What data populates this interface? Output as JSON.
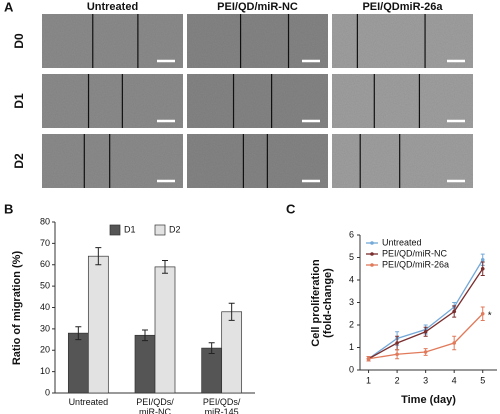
{
  "panel_a": {
    "label": "A",
    "columns": [
      "Untreated",
      "PEI/QD/miR-NC",
      "PEI/QDmiR-26a"
    ],
    "rows": [
      "D0",
      "D1",
      "D2"
    ]
  },
  "panel_b": {
    "label": "B"
  },
  "panel_c": {
    "label": "C"
  },
  "chart_data": [
    {
      "type": "bar",
      "ylabel": "Ratio of migration (%)",
      "categories": [
        "Untreated",
        "PEI/QDs/\nmiR-NC",
        "PEI/QDs/\nmiR-145"
      ],
      "series": [
        {
          "name": "D1",
          "color": "#555555",
          "values": [
            28,
            27,
            21
          ],
          "errors": [
            3,
            2.5,
            2.5
          ]
        },
        {
          "name": "D2",
          "color": "#e2e2e2",
          "values": [
            64,
            59,
            38
          ],
          "errors": [
            4,
            3,
            4
          ]
        }
      ],
      "ylim": [
        0,
        80
      ],
      "yticks": [
        0,
        10,
        20,
        30,
        40,
        50,
        60,
        70,
        80
      ],
      "legend": "top"
    },
    {
      "type": "line",
      "xlabel": "Time (day)",
      "ylabel": "Cell proliferation\n(fold-change)",
      "x": [
        1,
        2,
        3,
        4,
        5
      ],
      "series": [
        {
          "name": "Untreated",
          "color": "#74a9d8",
          "values": [
            0.5,
            1.4,
            1.8,
            2.8,
            4.9
          ],
          "errors": [
            0.1,
            0.3,
            0.2,
            0.2,
            0.25
          ]
        },
        {
          "name": "PEI/QD/miR-NC",
          "color": "#7a2e2e",
          "values": [
            0.5,
            1.2,
            1.7,
            2.6,
            4.5
          ],
          "errors": [
            0.1,
            0.3,
            0.2,
            0.25,
            0.3
          ]
        },
        {
          "name": "PEI/QD/miR-26a",
          "color": "#e07a5a",
          "values": [
            0.5,
            0.7,
            0.8,
            1.2,
            2.5
          ],
          "errors": [
            0.1,
            0.2,
            0.15,
            0.3,
            0.3
          ]
        }
      ],
      "annotation": "*",
      "xlim": [
        0.7,
        5.5
      ],
      "xticks": [
        1,
        2,
        3,
        4,
        5
      ],
      "ylim": [
        0,
        6
      ],
      "yticks": [
        0,
        1,
        2,
        3,
        4,
        5,
        6
      ],
      "legend": "top-left"
    }
  ]
}
